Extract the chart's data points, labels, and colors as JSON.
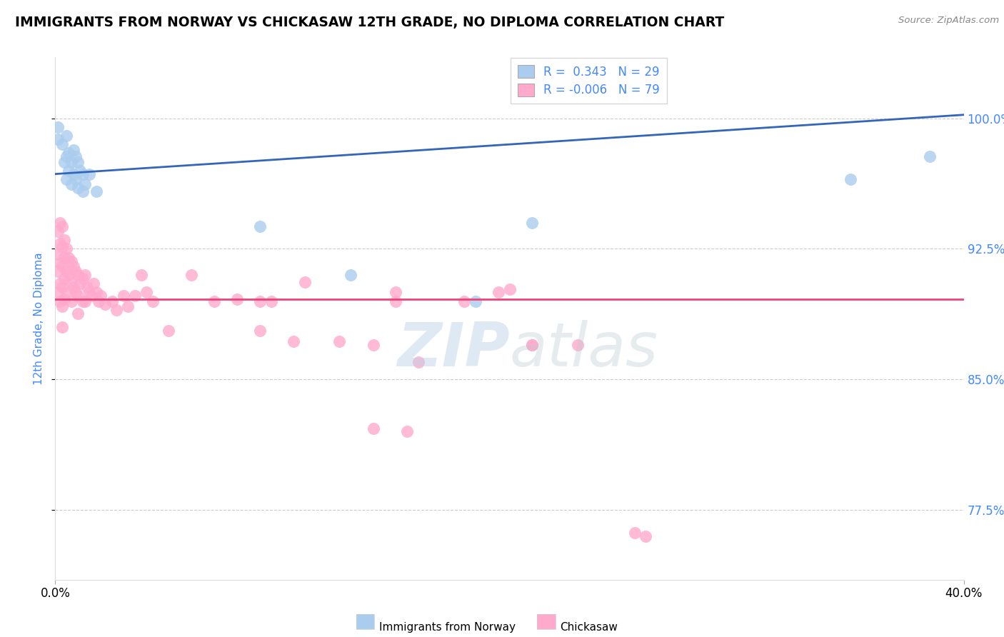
{
  "title": "IMMIGRANTS FROM NORWAY VS CHICKASAW 12TH GRADE, NO DIPLOMA CORRELATION CHART",
  "source": "Source: ZipAtlas.com",
  "ylabel": "12th Grade, No Diploma",
  "ytick_labels": [
    "77.5%",
    "85.0%",
    "92.5%",
    "100.0%"
  ],
  "ytick_values": [
    0.775,
    0.85,
    0.925,
    1.0
  ],
  "xmin": 0.0,
  "xmax": 0.4,
  "ymin": 0.735,
  "ymax": 1.035,
  "legend_blue_label": "Immigrants from Norway",
  "legend_pink_label": "Chickasaw",
  "r_blue": "0.343",
  "n_blue": 29,
  "r_pink": "-0.006",
  "n_pink": 79,
  "blue_color": "#AACCEE",
  "pink_color": "#FFAACC",
  "trend_blue_color": "#3366BB",
  "trend_pink_color": "#EE4477",
  "watermark_zip": "ZIP",
  "watermark_atlas": "atlas",
  "blue_trend_x": [
    0.0,
    0.4
  ],
  "blue_trend_y": [
    0.968,
    1.002
  ],
  "pink_trend_x": [
    0.0,
    0.4
  ],
  "pink_trend_y": [
    0.896,
    0.896
  ],
  "blue_points_x": [
    0.001,
    0.001,
    0.003,
    0.004,
    0.005,
    0.005,
    0.005,
    0.006,
    0.006,
    0.007,
    0.007,
    0.008,
    0.008,
    0.009,
    0.009,
    0.01,
    0.01,
    0.011,
    0.012,
    0.012,
    0.013,
    0.015,
    0.018,
    0.09,
    0.13,
    0.185,
    0.21,
    0.35,
    0.385
  ],
  "blue_points_y": [
    0.995,
    0.988,
    0.985,
    0.975,
    0.99,
    0.978,
    0.965,
    0.98,
    0.97,
    0.975,
    0.962,
    0.982,
    0.968,
    0.978,
    0.965,
    0.975,
    0.96,
    0.97,
    0.968,
    0.958,
    0.962,
    0.968,
    0.958,
    0.938,
    0.91,
    0.895,
    0.94,
    0.965,
    0.978
  ],
  "pink_points_x": [
    0.001,
    0.001,
    0.001,
    0.001,
    0.002,
    0.002,
    0.002,
    0.002,
    0.002,
    0.003,
    0.003,
    0.003,
    0.003,
    0.003,
    0.003,
    0.004,
    0.004,
    0.004,
    0.004,
    0.005,
    0.005,
    0.005,
    0.006,
    0.006,
    0.007,
    0.007,
    0.007,
    0.008,
    0.008,
    0.009,
    0.009,
    0.01,
    0.01,
    0.01,
    0.011,
    0.012,
    0.012,
    0.013,
    0.013,
    0.014,
    0.015,
    0.016,
    0.017,
    0.018,
    0.019,
    0.02,
    0.022,
    0.025,
    0.027,
    0.03,
    0.032,
    0.035,
    0.038,
    0.04,
    0.043,
    0.05,
    0.06,
    0.07,
    0.08,
    0.09,
    0.095,
    0.105,
    0.11,
    0.125,
    0.14,
    0.16,
    0.18,
    0.195,
    0.21,
    0.23,
    0.09,
    0.14,
    0.155,
    0.2,
    0.21,
    0.15,
    0.255,
    0.15,
    0.26
  ],
  "pink_points_y": [
    0.935,
    0.922,
    0.912,
    0.9,
    0.94,
    0.928,
    0.917,
    0.905,
    0.895,
    0.938,
    0.926,
    0.915,
    0.903,
    0.892,
    0.88,
    0.93,
    0.92,
    0.908,
    0.896,
    0.925,
    0.912,
    0.9,
    0.92,
    0.91,
    0.918,
    0.906,
    0.895,
    0.915,
    0.903,
    0.912,
    0.9,
    0.91,
    0.898,
    0.888,
    0.905,
    0.908,
    0.895,
    0.91,
    0.895,
    0.903,
    0.9,
    0.898,
    0.905,
    0.9,
    0.895,
    0.898,
    0.893,
    0.895,
    0.89,
    0.898,
    0.892,
    0.898,
    0.91,
    0.9,
    0.895,
    0.878,
    0.91,
    0.895,
    0.896,
    0.895,
    0.895,
    0.872,
    0.906,
    0.872,
    0.822,
    0.86,
    0.895,
    0.9,
    0.87,
    0.87,
    0.878,
    0.87,
    0.82,
    0.902,
    0.87,
    0.9,
    0.762,
    0.895,
    0.76
  ]
}
